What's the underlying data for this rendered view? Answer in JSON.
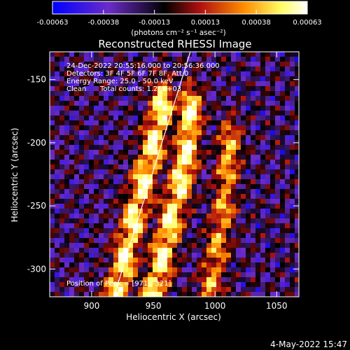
{
  "chart_data": {
    "type": "heatmap",
    "title": "Reconstructed RHESSI Image",
    "xlabel": "Heliocentric X (arcsec)",
    "ylabel": "Heliocentric Y (arcsec)",
    "xlim": [
      866,
      1068
    ],
    "ylim": [
      -322,
      -128
    ],
    "xticks": [
      900,
      950,
      1000,
      1050
    ],
    "yticks": [
      -150,
      -200,
      -250,
      -300
    ],
    "colorbar": {
      "ticks": [
        "-0.00063",
        "-0.00038",
        "-0.00013",
        "0.00013",
        "0.00038",
        "0.00063"
      ],
      "unit_label": "(photons cm⁻² s⁻¹ asec⁻²)",
      "range": [
        -0.00063,
        0.00063
      ],
      "colors": [
        "#0000ff",
        "#6c2cc8",
        "#000000",
        "#b01010",
        "#ff8c00",
        "#ffff66",
        "#ffffff"
      ]
    },
    "annotations": {
      "time": "24-Dec-2022 20:55:16.000 to 20:56:36.000",
      "detectors": "Detectors: 3F 4F 5F 6F 7F 8F, Att 0",
      "energy": "Energy Range: 25.0 - 50.0 keV",
      "clean": "Clean",
      "counts": "Total counts: 1.26E+03",
      "peak": "Position of Peak = [971, -321]"
    },
    "limb_line": {
      "x": [
        918,
        980
      ],
      "y": [
        -322,
        -128
      ]
    },
    "bright_ridges": [
      {
        "x": [
          918,
          925,
          932,
          940,
          948,
          955
        ],
        "y": [
          -320,
          -290,
          -260,
          -230,
          -200,
          -170
        ]
      },
      {
        "x": [
          948,
          955,
          962,
          970,
          975,
          978
        ],
        "y": [
          -320,
          -290,
          -260,
          -230,
          -205,
          -175
        ]
      },
      {
        "x": [
          995,
          1000,
          1005,
          1008,
          1010
        ],
        "y": [
          -310,
          -280,
          -250,
          -220,
          -200
        ]
      }
    ],
    "timestamp": "4-May-2022 15:47"
  }
}
